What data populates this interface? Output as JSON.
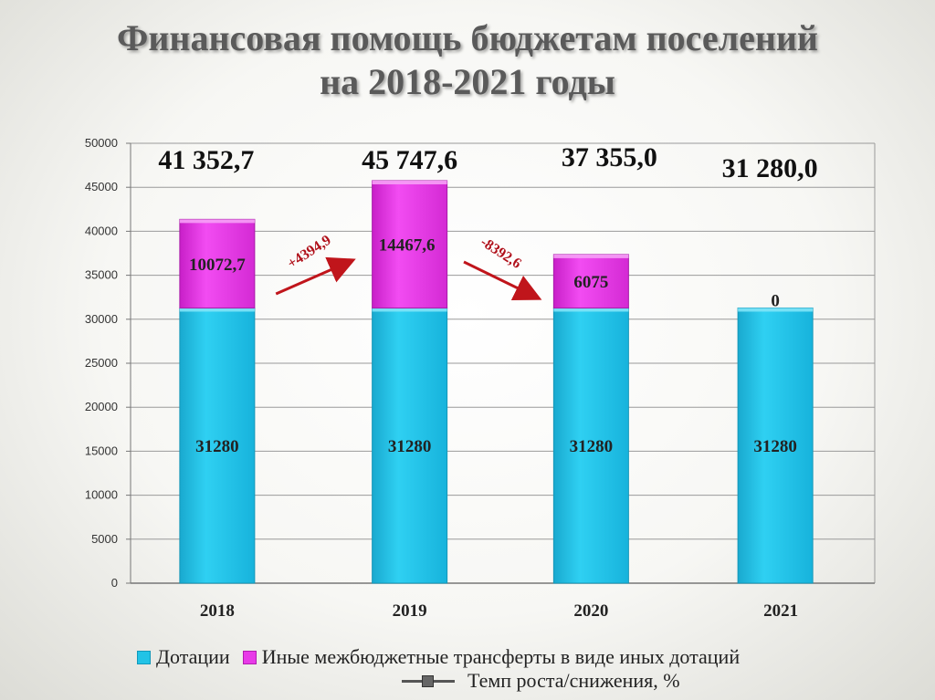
{
  "title": {
    "line1": "Финансовая помощь бюджетам поселений",
    "line2": "на 2018-2021 годы"
  },
  "chart_data": {
    "type": "bar",
    "stacked": true,
    "categories": [
      "2018",
      "2019",
      "2020",
      "2021"
    ],
    "series": [
      {
        "name": "Дотации",
        "color": "#22c3e6",
        "values": [
          31280,
          31280,
          31280,
          31280
        ],
        "labels": [
          "31280",
          "31280",
          "31280",
          "31280"
        ]
      },
      {
        "name": "Иные межбюджетные трансферты в виде иных дотаций",
        "color": "#e83ae8",
        "values": [
          10072.7,
          14467.6,
          6075,
          0
        ],
        "labels": [
          "10072,7",
          "14467,6",
          "6075",
          "0"
        ]
      }
    ],
    "totals": [
      "41 352,7",
      "45 747,6",
      "37 355,0",
      "31 280,0"
    ],
    "changes": [
      {
        "from": "2018",
        "to": "2019",
        "label": "+4394,9",
        "direction": "up"
      },
      {
        "from": "2019",
        "to": "2020",
        "label": "-8392,6",
        "direction": "down"
      }
    ],
    "ylim": [
      0,
      50000
    ],
    "yticks": [
      "0",
      "5000",
      "10000",
      "15000",
      "20000",
      "25000",
      "30000",
      "35000",
      "40000",
      "45000",
      "50000"
    ],
    "grid": true,
    "legend_position": "bottom",
    "extra_legend": "Темп роста/снижения, %"
  }
}
